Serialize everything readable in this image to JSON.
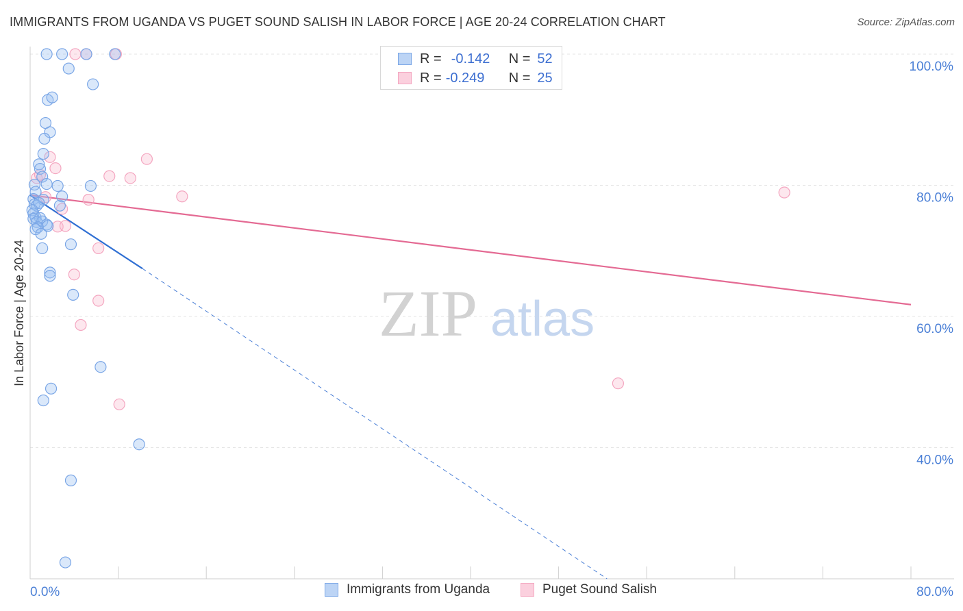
{
  "title": "IMMIGRANTS FROM UGANDA VS PUGET SOUND SALISH IN LABOR FORCE | AGE 20-24 CORRELATION CHART",
  "source": "Source: ZipAtlas.com",
  "watermark": {
    "zip": "ZIP",
    "atlas": "atlas"
  },
  "legend": {
    "rows": [
      {
        "r_key": "R =",
        "r_val": "-0.142",
        "n_key": "N =",
        "n_val": "52"
      },
      {
        "r_key": "R =",
        "r_val": "-0.249",
        "n_key": "N =",
        "n_val": "25"
      }
    ]
  },
  "chart_data": {
    "type": "scatter",
    "title": "IMMIGRANTS FROM UGANDA VS PUGET SOUND SALISH IN LABOR FORCE | AGE 20-24 CORRELATION CHART",
    "xlabel": "",
    "ylabel": "In Labor Force | Age 20-24",
    "xlim": [
      0,
      80
    ],
    "ylim": [
      20,
      100
    ],
    "x_tick_labels": [
      {
        "v": 0,
        "label": "0.0%"
      },
      {
        "v": 80,
        "label": "80.0%"
      }
    ],
    "y_tick_labels": [
      {
        "v": 100,
        "label": "100.0%"
      },
      {
        "v": 80,
        "label": "80.0%"
      },
      {
        "v": 60,
        "label": "60.0%"
      },
      {
        "v": 40,
        "label": "40.0%"
      }
    ],
    "grid": true,
    "legend_position": "top-center",
    "series": [
      {
        "name": "Immigrants from Uganda",
        "color": "#7aa6e6",
        "r": -0.142,
        "n": 52,
        "points": [
          [
            1.5,
            100
          ],
          [
            2.9,
            100
          ],
          [
            5.1,
            100
          ],
          [
            7.7,
            100
          ],
          [
            3.5,
            97.8
          ],
          [
            5.7,
            95.4
          ],
          [
            1.6,
            93.0
          ],
          [
            2.0,
            93.4
          ],
          [
            1.4,
            89.5
          ],
          [
            1.8,
            88.1
          ],
          [
            1.3,
            87.1
          ],
          [
            1.2,
            84.8
          ],
          [
            0.8,
            83.2
          ],
          [
            0.9,
            82.5
          ],
          [
            1.1,
            81.3
          ],
          [
            0.4,
            80.1
          ],
          [
            1.5,
            80.2
          ],
          [
            2.5,
            79.9
          ],
          [
            5.5,
            79.9
          ],
          [
            0.5,
            79.0
          ],
          [
            0.3,
            77.9
          ],
          [
            1.2,
            77.8
          ],
          [
            0.4,
            77.1
          ],
          [
            0.6,
            76.9
          ],
          [
            0.8,
            77.3
          ],
          [
            2.7,
            76.9
          ],
          [
            0.2,
            76.2
          ],
          [
            0.3,
            75.7
          ],
          [
            0.5,
            75.1
          ],
          [
            0.9,
            75.0
          ],
          [
            0.3,
            74.9
          ],
          [
            0.6,
            74.4
          ],
          [
            1.1,
            74.5
          ],
          [
            1.5,
            74.0
          ],
          [
            1.6,
            73.8
          ],
          [
            0.7,
            73.6
          ],
          [
            0.5,
            73.3
          ],
          [
            1.0,
            72.6
          ],
          [
            2.9,
            78.3
          ],
          [
            1.1,
            70.4
          ],
          [
            3.7,
            71.0
          ],
          [
            1.8,
            66.7
          ],
          [
            1.8,
            66.2
          ],
          [
            3.9,
            63.3
          ],
          [
            6.4,
            52.3
          ],
          [
            1.9,
            49.0
          ],
          [
            1.2,
            47.2
          ],
          [
            9.9,
            40.5
          ],
          [
            3.7,
            35.0
          ],
          [
            3.2,
            22.5
          ]
        ],
        "trend": {
          "x_start": 0,
          "y_start": 78.5,
          "x_end": 10.2,
          "y_end": 67.3,
          "x_dash_end": 52.4,
          "y_dash_end": 20
        }
      },
      {
        "name": "Puget Sound Salish",
        "color": "#f4a6c0",
        "r": -0.249,
        "n": 25,
        "points": [
          [
            4.1,
            100
          ],
          [
            5.1,
            100
          ],
          [
            7.8,
            100
          ],
          [
            1.8,
            84.3
          ],
          [
            10.6,
            84.0
          ],
          [
            2.3,
            82.6
          ],
          [
            7.2,
            81.4
          ],
          [
            9.1,
            81.1
          ],
          [
            0.6,
            81.1
          ],
          [
            0.9,
            81.6
          ],
          [
            13.8,
            78.3
          ],
          [
            68.5,
            78.9
          ],
          [
            1.4,
            78.2
          ],
          [
            5.3,
            77.8
          ],
          [
            2.9,
            76.4
          ],
          [
            2.5,
            73.7
          ],
          [
            3.2,
            73.8
          ],
          [
            6.2,
            70.4
          ],
          [
            4.0,
            66.4
          ],
          [
            6.2,
            62.4
          ],
          [
            4.6,
            58.7
          ],
          [
            53.4,
            49.8
          ],
          [
            8.1,
            46.6
          ]
        ],
        "trend": {
          "x_start": 0,
          "y_start": 78.5,
          "x_end": 80,
          "y_end": 61.8
        }
      }
    ]
  }
}
